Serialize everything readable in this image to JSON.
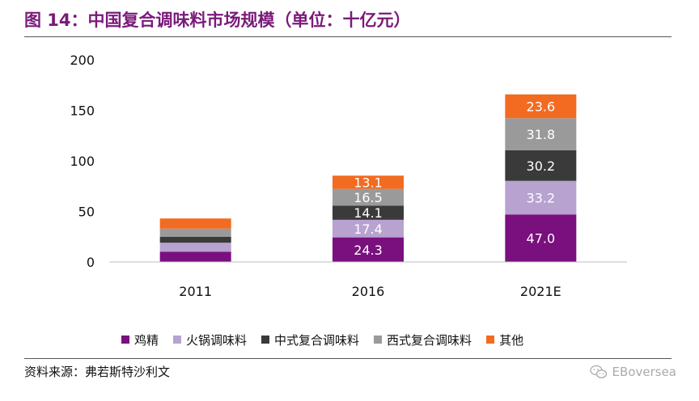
{
  "title": "图 14：中国复合调味料市场规模（单位：十亿元）",
  "source": "资料来源：弗若斯特沙利文",
  "watermark": "EBoversea",
  "chart_data": {
    "type": "bar",
    "stacked": true,
    "categories": [
      "2011",
      "2016",
      "2021E"
    ],
    "ylim": [
      0,
      200
    ],
    "yticks": [
      0,
      50,
      100,
      150,
      200
    ],
    "legend_position": "bottom",
    "grid": false,
    "series": [
      {
        "name": "鸡精",
        "color": "#7a0f7e",
        "values": [
          10.0,
          24.3,
          47.0
        ],
        "labels": [
          "",
          "24.3",
          "47.0"
        ]
      },
      {
        "name": "火锅调味料",
        "color": "#b7a2d0",
        "values": [
          9.0,
          17.4,
          33.2
        ],
        "labels": [
          "",
          "17.4",
          "33.2"
        ]
      },
      {
        "name": "中式复合调味料",
        "color": "#3a3a3a",
        "values": [
          6.0,
          14.1,
          30.2
        ],
        "labels": [
          "",
          "14.1",
          "30.2"
        ]
      },
      {
        "name": "西式复合调味料",
        "color": "#9a9a9a",
        "values": [
          8.0,
          16.5,
          31.8
        ],
        "labels": [
          "",
          "16.5",
          "31.8"
        ]
      },
      {
        "name": "其他",
        "color": "#f26b21",
        "values": [
          10.0,
          13.1,
          23.6
        ],
        "labels": [
          "",
          "13.1",
          "23.6"
        ]
      }
    ]
  }
}
